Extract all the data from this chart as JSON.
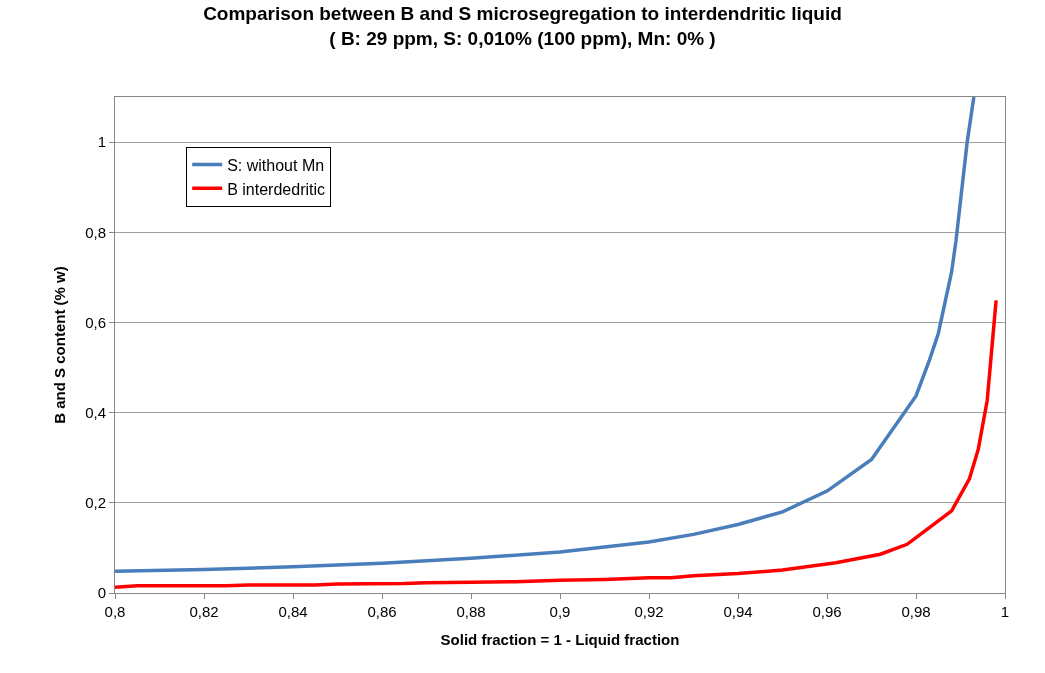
{
  "chart_data": {
    "type": "line",
    "title": "Comparison between B and S microsegregation to interdendritic liquid",
    "subtitle": "( B: 29 ppm, S: 0,010% (100 ppm), Mn: 0% )",
    "xlabel": "Solid fraction = 1 - Liquid fraction",
    "ylabel": "B and S content (% w)",
    "series": [
      {
        "name": "S: without Mn",
        "color": "#4a7ebb",
        "x": [
          0.8,
          0.82,
          0.84,
          0.86,
          0.88,
          0.9,
          0.92,
          0.93,
          0.94,
          0.95,
          0.96,
          0.97,
          0.98,
          0.983,
          0.985,
          0.988,
          0.989,
          0.9915,
          0.993
        ],
        "values": [
          0.048,
          0.052,
          0.058,
          0.066,
          0.077,
          0.091,
          0.113,
          0.13,
          0.152,
          0.18,
          0.226,
          0.296,
          0.437,
          0.516,
          0.575,
          0.712,
          0.782,
          1.0,
          1.1
        ]
      },
      {
        "name": "B interdedritic",
        "color": "#ff0000",
        "x": [
          0.8,
          0.805,
          0.825,
          0.83,
          0.845,
          0.85,
          0.865,
          0.87,
          0.88,
          0.89,
          0.9,
          0.91,
          0.92,
          0.925,
          0.93,
          0.94,
          0.95,
          0.962,
          0.972,
          0.978,
          0.983,
          0.988,
          0.992,
          0.994,
          0.996,
          0.998
        ],
        "values": [
          0.013,
          0.016,
          0.016,
          0.018,
          0.018,
          0.02,
          0.021,
          0.023,
          0.024,
          0.025,
          0.028,
          0.03,
          0.034,
          0.034,
          0.038,
          0.043,
          0.051,
          0.067,
          0.086,
          0.108,
          0.145,
          0.182,
          0.253,
          0.319,
          0.427,
          0.649
        ]
      }
    ],
    "xlim": [
      0.8,
      1.0
    ],
    "xticks": [
      {
        "value": 0.8,
        "label": "0,8"
      },
      {
        "value": 0.82,
        "label": "0,82"
      },
      {
        "value": 0.84,
        "label": "0,84"
      },
      {
        "value": 0.86,
        "label": "0,86"
      },
      {
        "value": 0.88,
        "label": "0,88"
      },
      {
        "value": 0.9,
        "label": "0,9"
      },
      {
        "value": 0.92,
        "label": "0,92"
      },
      {
        "value": 0.94,
        "label": "0,94"
      },
      {
        "value": 0.96,
        "label": "0,96"
      },
      {
        "value": 0.98,
        "label": "0,98"
      },
      {
        "value": 1.0,
        "label": "1"
      }
    ],
    "ylim": [
      0,
      1.1
    ],
    "yticks": [
      0,
      {
        "value": 0.2,
        "label": "0,2"
      },
      {
        "value": 0.4,
        "label": "0,4"
      },
      {
        "value": 0.6,
        "label": "0,6"
      },
      {
        "value": 0.8,
        "label": "0,8"
      },
      1
    ],
    "grid": "y",
    "legend": "top left",
    "marker": "none",
    "line_style": "solid"
  }
}
